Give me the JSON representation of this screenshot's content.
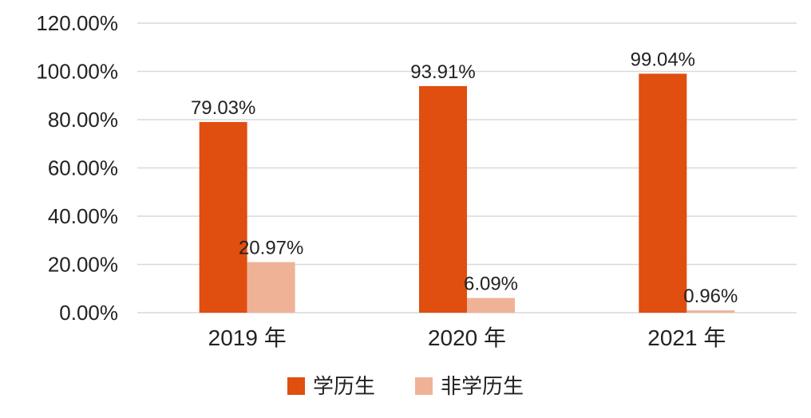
{
  "chart_data": {
    "type": "bar",
    "categories": [
      "2019 年",
      "2020 年",
      "2021 年"
    ],
    "series": [
      {
        "name": "学历生",
        "values": [
          79.03,
          93.91,
          99.04
        ],
        "labels": [
          "79.03%",
          "93.91%",
          "99.04%"
        ],
        "color": "#E04E10"
      },
      {
        "name": "非学历生",
        "values": [
          20.97,
          6.09,
          0.96
        ],
        "labels": [
          "20.97%",
          "6.09%",
          "0.96%"
        ],
        "color": "#F0B296"
      }
    ],
    "y_ticks": [
      "0.00%",
      "20.00%",
      "40.00%",
      "60.00%",
      "80.00%",
      "100.00%",
      "120.00%"
    ],
    "ylim": [
      0,
      120
    ],
    "grid": true,
    "legend_position": "bottom",
    "title": "",
    "xlabel": "",
    "ylabel": ""
  }
}
